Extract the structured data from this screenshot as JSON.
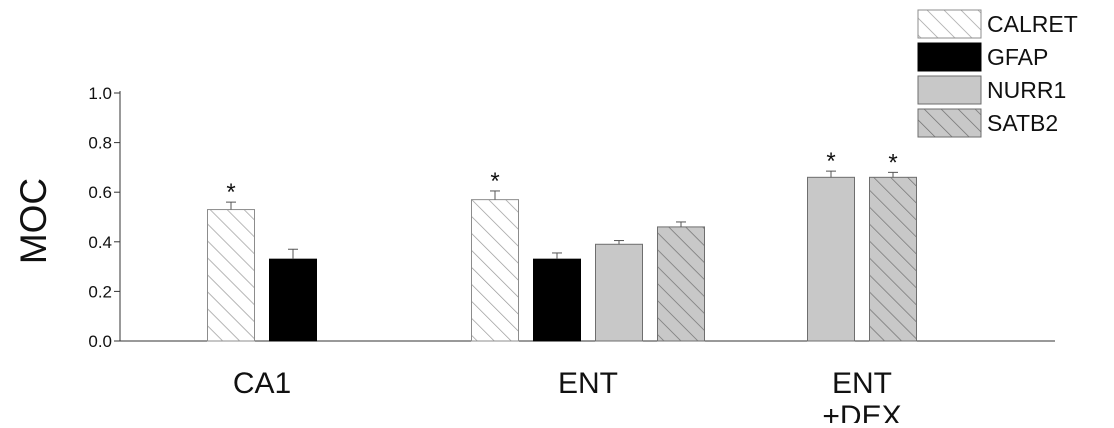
{
  "chart_data": {
    "type": "bar",
    "title": "",
    "xlabel": "",
    "ylabel": "MOC",
    "ylim": [
      0.0,
      1.0
    ],
    "yticks": [
      "0.0",
      "0.2",
      "0.4",
      "0.6",
      "0.8",
      "1.0"
    ],
    "legend_position": "top-right",
    "grid": false,
    "categories": [
      {
        "lines": [
          "CA1"
        ]
      },
      {
        "lines": [
          "ENT"
        ]
      },
      {
        "lines": [
          "ENT",
          "+DEX"
        ]
      }
    ],
    "series": [
      {
        "name": "CALRET",
        "fill": "#ffffff",
        "pattern": "hatch",
        "hatch_color": "#9a9a9a",
        "border": "#8c8c8c"
      },
      {
        "name": "GFAP",
        "fill": "#000000",
        "pattern": "none",
        "hatch_color": "",
        "border": "#000000"
      },
      {
        "name": "NURR1",
        "fill": "#c8c8c8",
        "pattern": "none",
        "hatch_color": "",
        "border": "#6e6e6e"
      },
      {
        "name": "SATB2",
        "fill": "#c8c8c8",
        "pattern": "hatch",
        "hatch_color": "#6e6e6e",
        "border": "#6e6e6e"
      }
    ],
    "bars": [
      {
        "category": "CA1",
        "series": "CALRET",
        "value": 0.53,
        "error": 0.03,
        "significant": true
      },
      {
        "category": "CA1",
        "series": "GFAP",
        "value": 0.33,
        "error": 0.04,
        "significant": false
      },
      {
        "category": "ENT",
        "series": "CALRET",
        "value": 0.57,
        "error": 0.035,
        "significant": true
      },
      {
        "category": "ENT",
        "series": "GFAP",
        "value": 0.33,
        "error": 0.025,
        "significant": false
      },
      {
        "category": "ENT",
        "series": "NURR1",
        "value": 0.39,
        "error": 0.015,
        "significant": false
      },
      {
        "category": "ENT",
        "series": "SATB2",
        "value": 0.46,
        "error": 0.02,
        "significant": false
      },
      {
        "category": "ENT +DEX",
        "series": "NURR1",
        "value": 0.66,
        "error": 0.025,
        "significant": true
      },
      {
        "category": "ENT +DEX",
        "series": "SATB2",
        "value": 0.66,
        "error": 0.02,
        "significant": true
      }
    ],
    "significance_marker": "*"
  }
}
